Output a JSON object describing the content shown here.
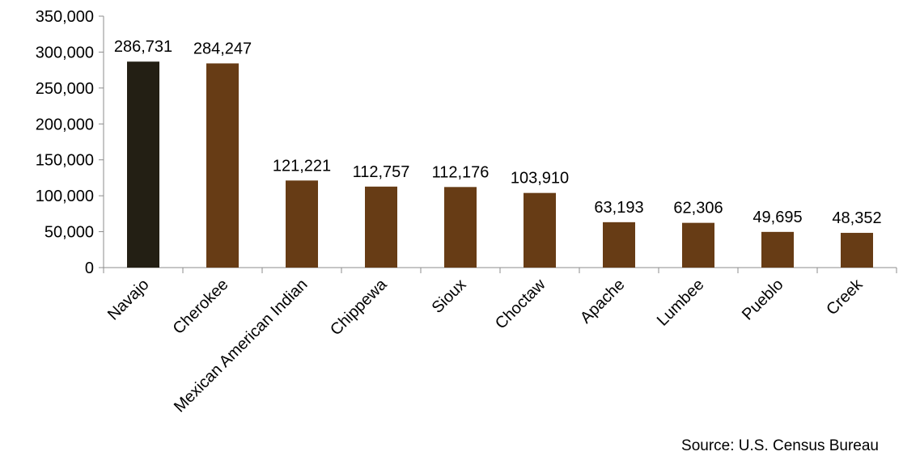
{
  "chart_data": {
    "type": "bar",
    "categories": [
      "Navajo",
      "Cherokee",
      "Mexican American Indian",
      "Chippewa",
      "Sioux",
      "Choctaw",
      "Apache",
      "Lumbee",
      "Pueblo",
      "Creek"
    ],
    "values": [
      286731,
      284247,
      121221,
      112757,
      112176,
      103910,
      63193,
      62306,
      49695,
      48352
    ],
    "data_labels": [
      "286,731",
      "284,247",
      "121,221",
      "112,757",
      "112,176",
      "103,910",
      "63,193",
      "62,306",
      "49,695",
      "48,352"
    ],
    "ylim": [
      0,
      350000
    ],
    "yticks": [
      0,
      50000,
      100000,
      150000,
      200000,
      250000,
      300000,
      350000
    ],
    "ytick_labels": [
      "0",
      "50,000",
      "100,000",
      "150,000",
      "200,000",
      "250,000",
      "300,000",
      "350,000"
    ],
    "grid": false,
    "colors": {
      "highlight": "#231f14",
      "bar": "#673c15",
      "axis": "#8c8c8c"
    },
    "highlight_index": 0
  },
  "source": "Source:  U.S. Census Bureau"
}
